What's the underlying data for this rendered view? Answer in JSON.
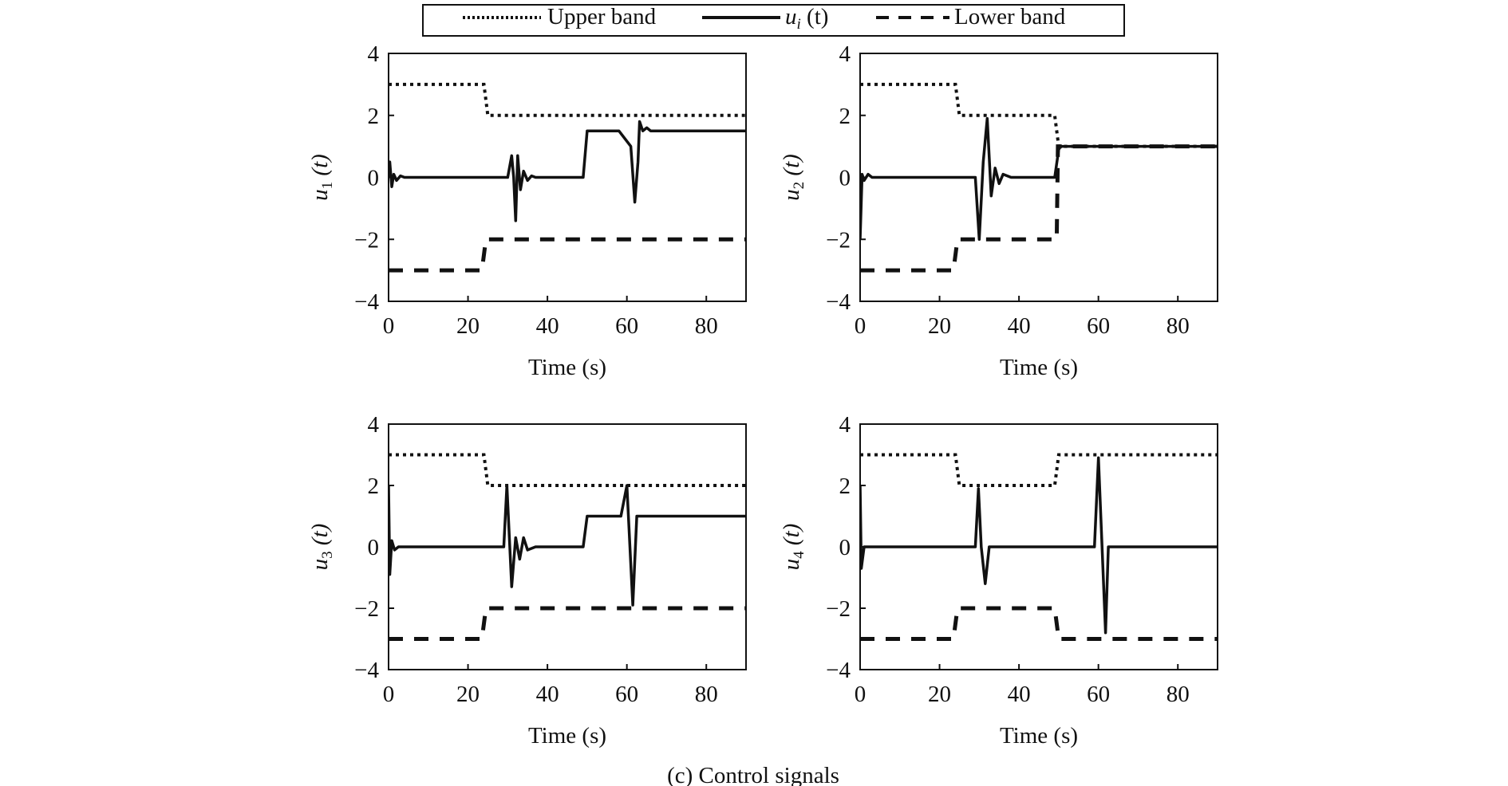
{
  "legend": {
    "items": [
      {
        "label": "Upper band",
        "style": "dotted"
      },
      {
        "label": "u",
        "sub": "i",
        "suffix": " (t)",
        "style": "solid"
      },
      {
        "label": "Lower band",
        "style": "dashed"
      }
    ]
  },
  "caption": "(c) Control signals",
  "chart_data": [
    {
      "type": "line",
      "title": "",
      "xlabel": "Time (s)",
      "ylabel": "u",
      "ylabel_sub": "1",
      "ylabel_suffix": " (t)",
      "xlim": [
        0,
        90
      ],
      "ylim": [
        -4,
        4
      ],
      "xticks": [
        0,
        20,
        40,
        60,
        80
      ],
      "yticks": [
        -4,
        -2,
        0,
        2,
        4
      ],
      "yticklabels": [
        "−4",
        "−2",
        "0",
        "2",
        "4"
      ],
      "series": [
        {
          "name": "Upper band",
          "style": "dotted",
          "points": [
            [
              0,
              3
            ],
            [
              24,
              3
            ],
            [
              25,
              2
            ],
            [
              90,
              2
            ]
          ]
        },
        {
          "name": "u1(t)",
          "style": "solid",
          "points": [
            [
              0,
              0
            ],
            [
              0.3,
              0.5
            ],
            [
              0.8,
              -0.3
            ],
            [
              1.3,
              0.1
            ],
            [
              2,
              -0.1
            ],
            [
              3,
              0.05
            ],
            [
              4,
              0
            ],
            [
              30,
              0
            ],
            [
              31,
              0.7
            ],
            [
              31.5,
              0
            ],
            [
              32,
              -1.4
            ],
            [
              32.5,
              0.7
            ],
            [
              33.2,
              -0.4
            ],
            [
              34,
              0.2
            ],
            [
              35,
              -0.1
            ],
            [
              36,
              0.05
            ],
            [
              37,
              0
            ],
            [
              49,
              0
            ],
            [
              50,
              1.5
            ],
            [
              58,
              1.5
            ],
            [
              61,
              1.0
            ],
            [
              62,
              -0.8
            ],
            [
              62.8,
              0.5
            ],
            [
              63.2,
              1.8
            ],
            [
              64,
              1.5
            ],
            [
              65,
              1.6
            ],
            [
              66,
              1.5
            ],
            [
              90,
              1.5
            ]
          ]
        },
        {
          "name": "Lower band",
          "style": "dashed",
          "points": [
            [
              0,
              -3
            ],
            [
              23.5,
              -3
            ],
            [
              24.5,
              -2
            ],
            [
              90,
              -2
            ]
          ]
        }
      ]
    },
    {
      "type": "line",
      "title": "",
      "xlabel": "Time (s)",
      "ylabel": "u",
      "ylabel_sub": "2",
      "ylabel_suffix": " (t)",
      "xlim": [
        0,
        90
      ],
      "ylim": [
        -4,
        4
      ],
      "xticks": [
        0,
        20,
        40,
        60,
        80
      ],
      "yticks": [
        -4,
        -2,
        0,
        2,
        4
      ],
      "yticklabels": [
        "−4",
        "−2",
        "0",
        "2",
        "4"
      ],
      "series": [
        {
          "name": "Upper band",
          "style": "dotted",
          "points": [
            [
              0,
              3
            ],
            [
              24,
              3
            ],
            [
              25,
              2
            ],
            [
              49,
              2
            ],
            [
              50,
              1
            ],
            [
              90,
              1
            ]
          ]
        },
        {
          "name": "u2(t)",
          "style": "solid",
          "points": [
            [
              0,
              -2
            ],
            [
              0.5,
              0.1
            ],
            [
              1,
              -0.1
            ],
            [
              2,
              0.1
            ],
            [
              3,
              0
            ],
            [
              5,
              0
            ],
            [
              29,
              0
            ],
            [
              30,
              -2
            ],
            [
              31,
              0.5
            ],
            [
              32,
              1.9
            ],
            [
              33,
              -0.6
            ],
            [
              34,
              0.3
            ],
            [
              35,
              -0.2
            ],
            [
              36,
              0.1
            ],
            [
              38,
              0
            ],
            [
              49,
              0
            ],
            [
              50,
              0.9
            ],
            [
              50.5,
              1
            ],
            [
              90,
              1
            ]
          ]
        },
        {
          "name": "Lower band",
          "style": "dashed",
          "points": [
            [
              0,
              -3
            ],
            [
              23.5,
              -3
            ],
            [
              24.5,
              -2
            ],
            [
              49.5,
              -2
            ],
            [
              49.8,
              1
            ],
            [
              90,
              1
            ]
          ]
        }
      ]
    },
    {
      "type": "line",
      "title": "",
      "xlabel": "Time (s)",
      "ylabel": "u",
      "ylabel_sub": "3",
      "ylabel_suffix": " (t)",
      "xlim": [
        0,
        90
      ],
      "ylim": [
        -4,
        4
      ],
      "xticks": [
        0,
        20,
        40,
        60,
        80
      ],
      "yticks": [
        -4,
        -2,
        0,
        2,
        4
      ],
      "yticklabels": [
        "−4",
        "−2",
        "0",
        "2",
        "4"
      ],
      "series": [
        {
          "name": "Upper band",
          "style": "dotted",
          "points": [
            [
              0,
              3
            ],
            [
              24,
              3
            ],
            [
              25,
              2
            ],
            [
              90,
              2
            ]
          ]
        },
        {
          "name": "u3(t)",
          "style": "solid",
          "points": [
            [
              0,
              2
            ],
            [
              0.3,
              -0.9
            ],
            [
              0.8,
              0.2
            ],
            [
              1.5,
              -0.1
            ],
            [
              2.5,
              0
            ],
            [
              29,
              0
            ],
            [
              29.8,
              2
            ],
            [
              31,
              -1.3
            ],
            [
              32,
              0.3
            ],
            [
              33,
              -0.4
            ],
            [
              34,
              0.3
            ],
            [
              35,
              -0.1
            ],
            [
              37,
              0
            ],
            [
              49,
              0
            ],
            [
              50,
              1
            ],
            [
              58.5,
              1
            ],
            [
              60,
              2
            ],
            [
              61.5,
              -1.9
            ],
            [
              62.5,
              1
            ],
            [
              90,
              1
            ]
          ]
        },
        {
          "name": "Lower band",
          "style": "dashed",
          "points": [
            [
              0,
              -3
            ],
            [
              23.5,
              -3
            ],
            [
              24.5,
              -2
            ],
            [
              90,
              -2
            ]
          ]
        }
      ]
    },
    {
      "type": "line",
      "title": "",
      "xlabel": "Time (s)",
      "ylabel": "u",
      "ylabel_sub": "4",
      "ylabel_suffix": " (t)",
      "xlim": [
        0,
        90
      ],
      "ylim": [
        -4,
        4
      ],
      "xticks": [
        0,
        20,
        40,
        60,
        80
      ],
      "yticks": [
        -4,
        -2,
        0,
        2,
        4
      ],
      "yticklabels": [
        "−4",
        "−2",
        "0",
        "2",
        "4"
      ],
      "series": [
        {
          "name": "Upper band",
          "style": "dotted",
          "points": [
            [
              0,
              3
            ],
            [
              24,
              3
            ],
            [
              25,
              2
            ],
            [
              49,
              2
            ],
            [
              50,
              3
            ],
            [
              90,
              3
            ]
          ]
        },
        {
          "name": "u4(t)",
          "style": "solid",
          "points": [
            [
              0,
              2
            ],
            [
              0.3,
              -0.7
            ],
            [
              1,
              0
            ],
            [
              29,
              0
            ],
            [
              29.8,
              1.9
            ],
            [
              30.5,
              0
            ],
            [
              31.5,
              -1.2
            ],
            [
              32.5,
              0
            ],
            [
              59,
              0
            ],
            [
              60,
              2.9
            ],
            [
              61.8,
              -2.8
            ],
            [
              62.5,
              0
            ],
            [
              90,
              0
            ]
          ]
        },
        {
          "name": "Lower band",
          "style": "dashed",
          "points": [
            [
              0,
              -3
            ],
            [
              23.5,
              -3
            ],
            [
              24.5,
              -2
            ],
            [
              49,
              -2
            ],
            [
              50,
              -3
            ],
            [
              90,
              -3
            ]
          ]
        }
      ]
    }
  ]
}
